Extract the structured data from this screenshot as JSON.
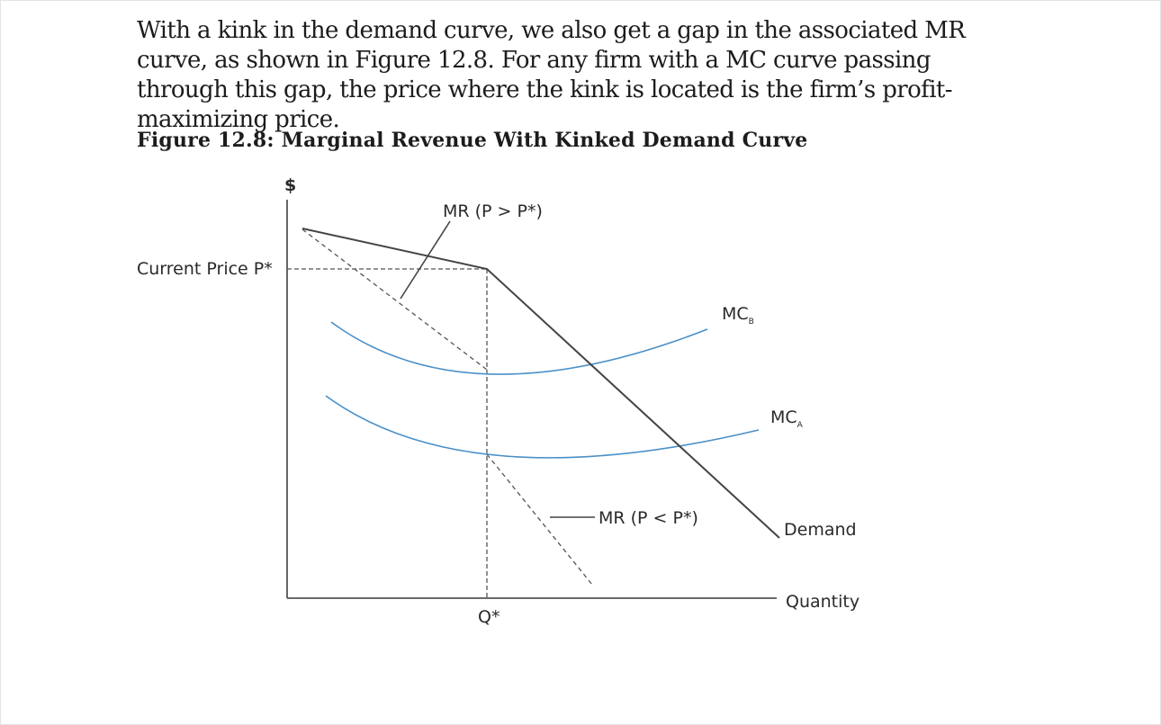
{
  "paragraph": "With a kink in the demand curve, we also get a gap in the associated MR curve, as shown in Figure 12.8. For any firm with a MC curve passing through this gap, the price where the kink is located is the firm’s profit-maximizing price.",
  "figure": {
    "caption": "Figure 12.8: Marginal Revenue With Kinked Demand Curve",
    "y_axis_label": "$",
    "x_axis_label": "Quantity",
    "price_label": "Current Price P*",
    "quantity_label": "Q*",
    "mr_upper_label": "MR (P > P*)",
    "mr_lower_label": "MR (P < P*)",
    "mcb_label": "MC",
    "mcb_sub": "B",
    "mca_label": "MC",
    "mca_sub": "A",
    "demand_label": "Demand"
  },
  "colors": {
    "curve": "#444444",
    "mc_curve": "#4a90c8"
  }
}
